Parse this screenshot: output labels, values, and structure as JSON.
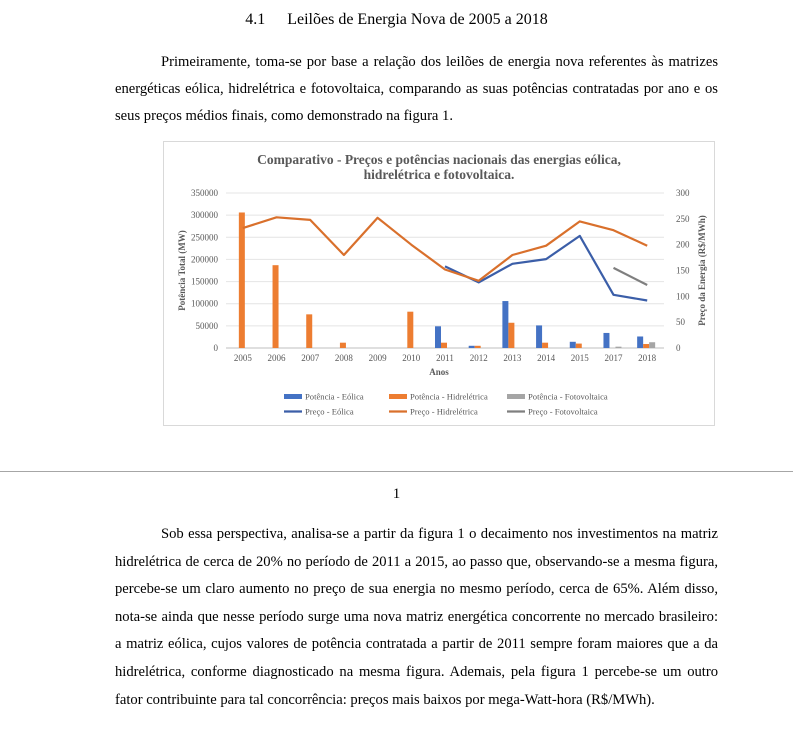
{
  "section": {
    "number": "4.1",
    "title": "Leilões de Energia Nova de 2005 a 2018"
  },
  "paragraph1": "Primeiramente, toma-se por base a relação dos leilões de energia nova referentes às matrizes energéticas eólica, hidrelétrica e fotovoltaica, comparando as suas potências contratadas por ano e os seus preços médios finais, como demonstrado na figura 1.",
  "page_number": "1",
  "paragraph2": "Sob essa perspectiva, analisa-se a partir da figura 1 o decaimento nos investimentos na matriz hidrelétrica de cerca de 20% no período de 2011 a 2015, ao passo que, observando-se a mesma figura, percebe-se um claro aumento no preço de sua energia no mesmo período, cerca de 65%. Além disso, nota-se ainda que nesse período surge uma nova matriz energética concorrente no mercado brasileiro: a matriz eólica, cujos valores de potência contratada a partir de 2011 sempre foram maiores que a da hidrelétrica, conforme diagnosticado na mesma figura. Ademais, pela figura 1 percebe-se um outro fator contribuinte para tal concorrência: preços mais baixos por mega-Watt-hora (R$/MWh).",
  "chart_data": {
    "type": "bar",
    "title_lines": [
      "Comparativo - Preços e potências nacionais das energias eólica,",
      "hidrelétrica e fotovoltaica."
    ],
    "xlabel": "Anos",
    "ylabel_left": "Potência Total (MW)",
    "ylabel_right": "Preço da Energia (R$/MWh)",
    "categories": [
      "2005",
      "2006",
      "2007",
      "2008",
      "2009",
      "2010",
      "2011",
      "2012",
      "2013",
      "2014",
      "2015",
      "2017",
      "2018"
    ],
    "ylim_left": [
      0,
      350000
    ],
    "yticks_left": [
      0,
      50000,
      100000,
      150000,
      200000,
      250000,
      300000,
      350000
    ],
    "ylim_right": [
      0,
      300
    ],
    "yticks_right": [
      0,
      50,
      100,
      150,
      200,
      250,
      300
    ],
    "bar_series": [
      {
        "name": "Potência - Eólica",
        "color": "#4472c4",
        "values": [
          0,
          0,
          0,
          0,
          0,
          0,
          49000,
          5000,
          106000,
          51000,
          14000,
          34000,
          26000
        ]
      },
      {
        "name": "Potência - Hidrelétrica",
        "color": "#ed7d31",
        "values": [
          306000,
          187000,
          76000,
          12000,
          0,
          82000,
          12000,
          5000,
          57000,
          12000,
          10000,
          0,
          9000
        ]
      },
      {
        "name": "Potência - Fotovoltaica",
        "color": "#a5a5a5",
        "values": [
          0,
          0,
          0,
          0,
          0,
          0,
          0,
          0,
          0,
          0,
          0,
          3000,
          13000
        ]
      }
    ],
    "line_series": [
      {
        "name": "Preço - Eólica",
        "color": "#3b5ea8",
        "values": [
          null,
          null,
          null,
          null,
          null,
          null,
          158,
          127,
          163,
          172,
          217,
          103,
          92
        ]
      },
      {
        "name": "Preço - Hidrelétrica",
        "color": "#d9702c",
        "values": [
          232,
          253,
          248,
          180,
          252,
          200,
          152,
          130,
          180,
          198,
          245,
          228,
          198
        ]
      },
      {
        "name": "Preço - Fotovoltaica",
        "color": "#7f7f7f",
        "values": [
          null,
          null,
          null,
          null,
          null,
          null,
          null,
          null,
          null,
          null,
          null,
          155,
          122
        ]
      }
    ]
  }
}
